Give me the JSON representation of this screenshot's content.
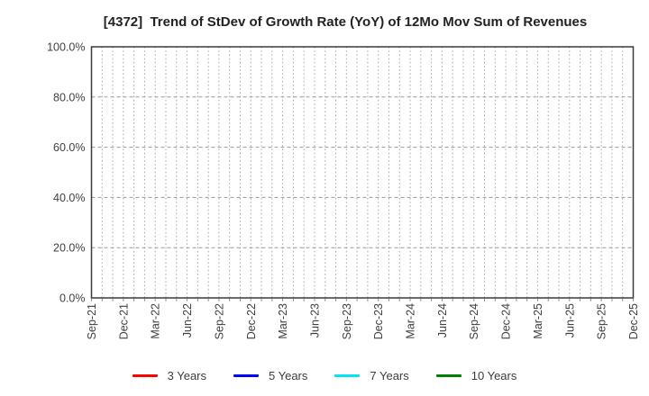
{
  "chart_data": {
    "type": "line",
    "title": "[4372]  Trend of StDev of Growth Rate (YoY) of 12Mo Mov Sum of Revenues",
    "x_tick_labels": [
      "Sep-21",
      "Dec-21",
      "Mar-22",
      "Jun-22",
      "Sep-22",
      "Dec-22",
      "Mar-23",
      "Jun-23",
      "Sep-23",
      "Dec-23",
      "Mar-24",
      "Jun-24",
      "Sep-24",
      "Dec-24",
      "Mar-25",
      "Jun-25",
      "Sep-25",
      "Dec-25"
    ],
    "months_per_x_tick": 3,
    "y_ticks": [
      0,
      20,
      40,
      60,
      80,
      100
    ],
    "y_tick_labels": [
      "0.0%",
      "20.0%",
      "40.0%",
      "60.0%",
      "80.0%",
      "100.0%"
    ],
    "ylim": [
      0,
      100
    ],
    "grid": {
      "vertical_minor": "dotted monthly",
      "horizontal": "dashed at 20% steps"
    },
    "legend_position": "bottom",
    "series": [
      {
        "name": "3 Years",
        "color": "#ff0000",
        "values": []
      },
      {
        "name": "5 Years",
        "color": "#0000ff",
        "values": []
      },
      {
        "name": "7 Years",
        "color": "#00e5ee",
        "values": []
      },
      {
        "name": "10 Years",
        "color": "#008000",
        "values": []
      }
    ]
  },
  "colors": {
    "background": "#ffffff",
    "frame": "#3a3a3a",
    "grid_vertical": "#a8a8a8",
    "grid_horizontal": "#999999",
    "axis_tick": "#8a8a8a",
    "tick_text": "#404040",
    "title_text": "#222222",
    "legend_text": "#3c3c3c"
  }
}
